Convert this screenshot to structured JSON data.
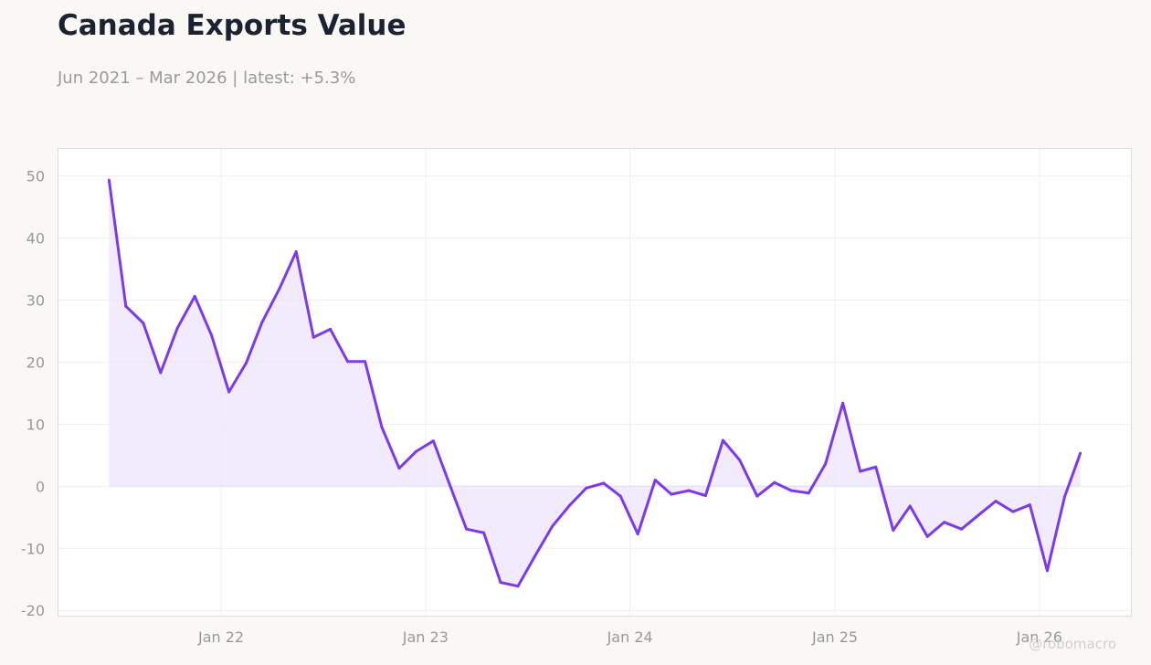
{
  "header": {
    "title": "Canada Exports Value",
    "subtitle": "Jun 2021 – Mar 2026 | latest: +5.3%"
  },
  "watermark": "@robomacro",
  "colors": {
    "line": "#7c3aed",
    "fill": "#ede4fc",
    "grid": "#efefef",
    "plot_border": "#dddddd",
    "plot_background": "#ffffff",
    "page_background": "#f9f8f5"
  },
  "chart_data": {
    "type": "area",
    "title": "Canada Exports Value",
    "subtitle": "Jun 2021 – Mar 2026 | latest: +5.3%",
    "xlabel": "",
    "ylabel": "",
    "ylim": [
      -21,
      54.5
    ],
    "xlim": [
      "2021-03-15",
      "2026-06-15"
    ],
    "grid": true,
    "legend": "none",
    "y_ticks": [
      -20,
      -10,
      0,
      10,
      20,
      30,
      40,
      50
    ],
    "x_ticks": [
      {
        "date": "2022-01-01",
        "label": "Jan 22"
      },
      {
        "date": "2023-01-01",
        "label": "Jan 23"
      },
      {
        "date": "2024-01-01",
        "label": "Jan 24"
      },
      {
        "date": "2025-01-01",
        "label": "Jan 25"
      },
      {
        "date": "2026-01-01",
        "label": "Jan 26"
      }
    ],
    "series": [
      {
        "x": [
          "2021-06",
          "2021-07",
          "2021-08",
          "2021-09",
          "2021-10",
          "2021-11",
          "2021-12",
          "2022-01",
          "2022-02",
          "2022-03",
          "2022-04",
          "2022-05",
          "2022-06",
          "2022-07",
          "2022-08",
          "2022-09",
          "2022-10",
          "2022-11",
          "2022-12",
          "2023-01",
          "2023-02",
          "2023-03",
          "2023-04",
          "2023-05",
          "2023-06",
          "2023-07",
          "2023-08",
          "2023-09",
          "2023-10",
          "2023-11",
          "2023-12",
          "2024-01",
          "2024-02",
          "2024-03",
          "2024-04",
          "2024-05",
          "2024-06",
          "2024-07",
          "2024-08",
          "2024-09",
          "2024-10",
          "2024-11",
          "2024-12",
          "2025-01",
          "2025-02",
          "2025-03",
          "2025-04",
          "2025-05",
          "2025-06",
          "2025-07",
          "2025-08",
          "2025-09",
          "2025-10",
          "2025-11",
          "2025-12",
          "2026-01",
          "2026-02",
          "2026-03"
        ],
        "values": [
          49.3,
          29.0,
          26.3,
          18.3,
          25.5,
          30.6,
          24.3,
          15.2,
          19.9,
          26.4,
          31.8,
          37.8,
          24.0,
          25.3,
          20.1,
          20.1,
          9.5,
          2.9,
          5.6,
          7.3,
          -0.2,
          -6.9,
          -7.5,
          -15.5,
          -16.1,
          -11.3,
          -6.5,
          -3.1,
          -0.3,
          0.5,
          -1.6,
          -7.7,
          1.0,
          -1.3,
          -0.7,
          -1.5,
          7.4,
          4.2,
          -1.6,
          0.6,
          -0.7,
          -1.1,
          3.6,
          13.4,
          2.4,
          3.1,
          -7.1,
          -3.2,
          -8.1,
          -5.8,
          -6.9,
          -4.6,
          -2.4,
          -4.1,
          -3.0,
          -13.6,
          -1.7,
          5.3
        ]
      }
    ]
  }
}
